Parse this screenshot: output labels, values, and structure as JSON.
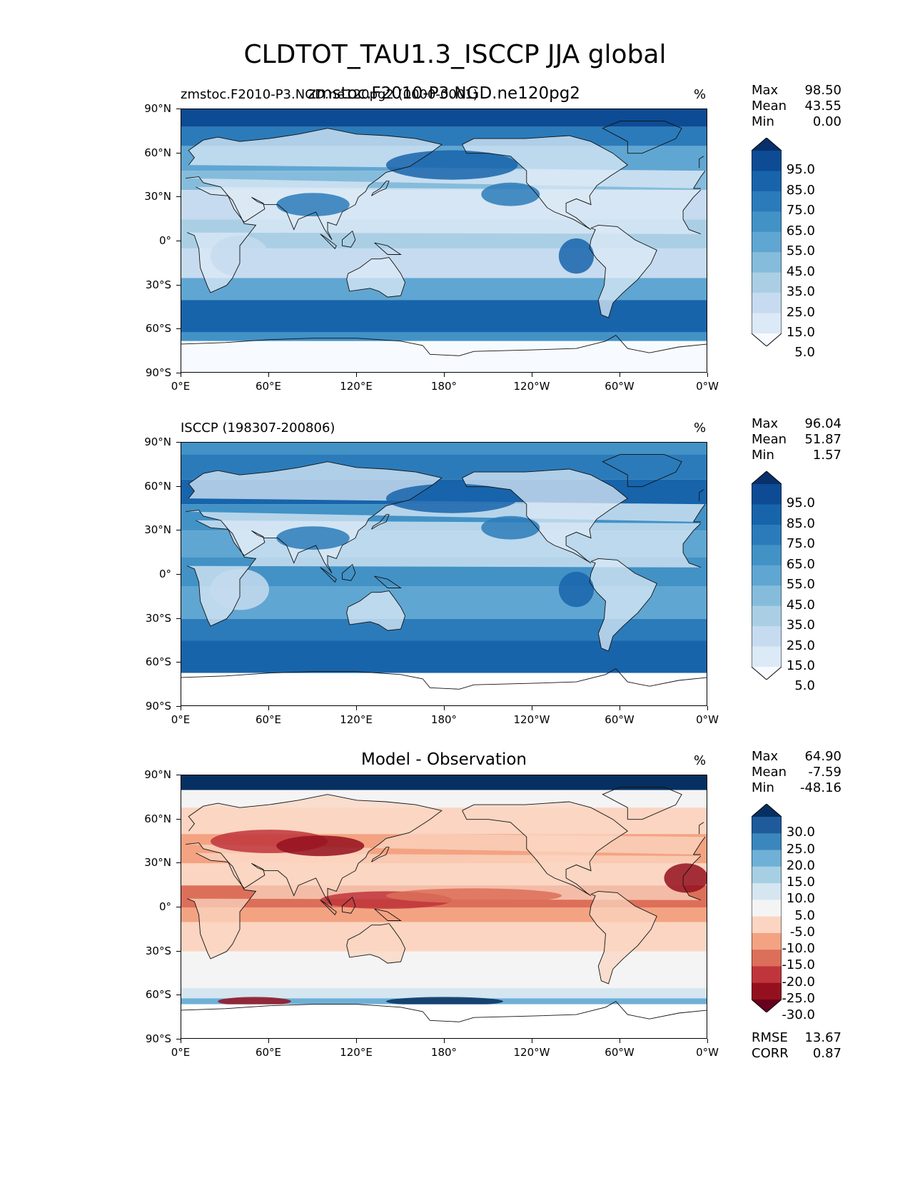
{
  "title": "CLDTOT_TAU1.3_ISCCP JJA global",
  "x_ticks": [
    "0°E",
    "60°E",
    "120°E",
    "180°",
    "120°W",
    "60°W",
    "0°W"
  ],
  "y_ticks": [
    "90°N",
    "60°N",
    "30°N",
    "0°",
    "30°S",
    "60°S",
    "90°S"
  ],
  "panels": [
    {
      "left_title": "zmstoc.F2010-P3.NGD.ne120pg2 (0000-0001)",
      "center_title": "zmstoc.F2010-P3.NGD.ne120pg2",
      "units": "%",
      "stats": {
        "max_label": "Max",
        "max": "98.50",
        "mean_label": "Mean",
        "mean": "43.55",
        "min_label": "Min",
        "min": "0.00"
      },
      "colorbar": {
        "labels": [
          "95.0",
          "85.0",
          "75.0",
          "65.0",
          "55.0",
          "45.0",
          "35.0",
          "25.0",
          "15.0",
          "5.0"
        ],
        "colors": [
          "#08306b",
          "#0d4b94",
          "#1764ab",
          "#2b7bba",
          "#4292c6",
          "#60a6d2",
          "#85bcdc",
          "#aacfe5",
          "#c6dbef",
          "#dce9f6",
          "#f7fbff"
        ]
      }
    },
    {
      "left_title": "ISCCP (198307-200806)",
      "center_title": "",
      "units": "%",
      "stats": {
        "max_label": "Max",
        "max": "96.04",
        "mean_label": "Mean",
        "mean": "51.87",
        "min_label": "Min",
        "min": "1.57"
      },
      "colorbar": {
        "labels": [
          "95.0",
          "85.0",
          "75.0",
          "65.0",
          "55.0",
          "45.0",
          "35.0",
          "25.0",
          "15.0",
          "5.0"
        ],
        "colors": [
          "#08306b",
          "#0d4b94",
          "#1764ab",
          "#2b7bba",
          "#4292c6",
          "#60a6d2",
          "#85bcdc",
          "#aacfe5",
          "#c6dbef",
          "#dce9f6",
          "#f7fbff"
        ]
      }
    },
    {
      "left_title": "",
      "center_title": "Model - Observation",
      "units": "%",
      "stats": {
        "max_label": "Max",
        "max": "64.90",
        "mean_label": "Mean",
        "mean": "-7.59",
        "min_label": "Min",
        "min": "-48.16"
      },
      "colorbar": {
        "labels": [
          "30.0",
          "25.0",
          "20.0",
          "15.0",
          "10.0",
          "5.0",
          "-5.0",
          "-10.0",
          "-15.0",
          "-20.0",
          "-25.0",
          "-30.0"
        ],
        "colors": [
          "#053061",
          "#1f5b9b",
          "#3a87bd",
          "#6fb0d6",
          "#a6cfe3",
          "#d5e6f0",
          "#f4f4f4",
          "#fbd5c1",
          "#f3a382",
          "#dc6f59",
          "#c0353b",
          "#94101e",
          "#67001f"
        ]
      },
      "metrics": {
        "rmse_label": "RMSE",
        "rmse": "13.67",
        "corr_label": "CORR",
        "corr": "0.87"
      }
    }
  ],
  "chart_data": [
    {
      "type": "heatmap",
      "title": "zmstoc.F2010-P3.NGD.ne120pg2",
      "units": "%",
      "xlim": [
        0,
        360
      ],
      "ylim": [
        -90,
        90
      ],
      "levels": [
        5,
        15,
        25,
        35,
        45,
        55,
        65,
        75,
        85,
        95
      ],
      "stats": {
        "max": 98.5,
        "mean": 43.55,
        "min": 0.0
      },
      "grid": false
    },
    {
      "type": "heatmap",
      "title": "ISCCP (198307-200806)",
      "units": "%",
      "xlim": [
        0,
        360
      ],
      "ylim": [
        -90,
        90
      ],
      "levels": [
        5,
        15,
        25,
        35,
        45,
        55,
        65,
        75,
        85,
        95
      ],
      "stats": {
        "max": 96.04,
        "mean": 51.87,
        "min": 1.57
      },
      "grid": false
    },
    {
      "type": "heatmap",
      "title": "Model - Observation",
      "units": "%",
      "xlim": [
        0,
        360
      ],
      "ylim": [
        -90,
        90
      ],
      "levels": [
        -30,
        -25,
        -20,
        -15,
        -10,
        -5,
        5,
        10,
        15,
        20,
        25,
        30
      ],
      "stats": {
        "max": 64.9,
        "mean": -7.59,
        "min": -48.16
      },
      "metrics": {
        "rmse": 13.67,
        "corr": 0.87
      },
      "grid": false
    }
  ]
}
